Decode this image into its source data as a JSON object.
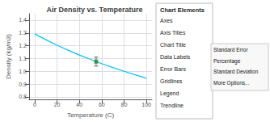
{
  "chart_data": {
    "type": "line",
    "title": "Air Density vs. Temperature",
    "xlabel": "Temperature (C)",
    "ylabel": "Density (kg/m3)",
    "xlim": [
      -5,
      105
    ],
    "xticks": [
      0,
      20,
      40,
      60,
      80,
      100
    ],
    "ylim": [
      0.78,
      1.45
    ],
    "yticks": [
      0.8,
      0.9,
      {
        "value": 1,
        "label": "1.0"
      },
      1.1,
      1.2,
      1.3,
      1.4
    ],
    "grid": true,
    "series": [
      {
        "type": "line",
        "color": "#00BFFF",
        "x": [
          0,
          10,
          20,
          30,
          40,
          50,
          60,
          70,
          80,
          90,
          100
        ],
        "values": [
          1.293,
          1.247,
          1.204,
          1.165,
          1.127,
          1.093,
          1.06,
          1.029,
          1.0,
          0.972,
          0.946
        ]
      },
      {
        "type": "scatter",
        "color": "#228B22",
        "marker": "square",
        "x": [
          55
        ],
        "values": [
          1.076
        ],
        "error": [
          0.035
        ]
      }
    ],
    "annotations": [
      [
        "Chart Elements",
        "Axes",
        "Axis Titles",
        "Chart Title",
        "Data Labels",
        "Error Bars",
        "Gridlines",
        "Legend",
        "Trendline"
      ],
      [
        "Standard Error",
        "Percentage",
        "Standard Deviation",
        "More Options..."
      ]
    ]
  }
}
